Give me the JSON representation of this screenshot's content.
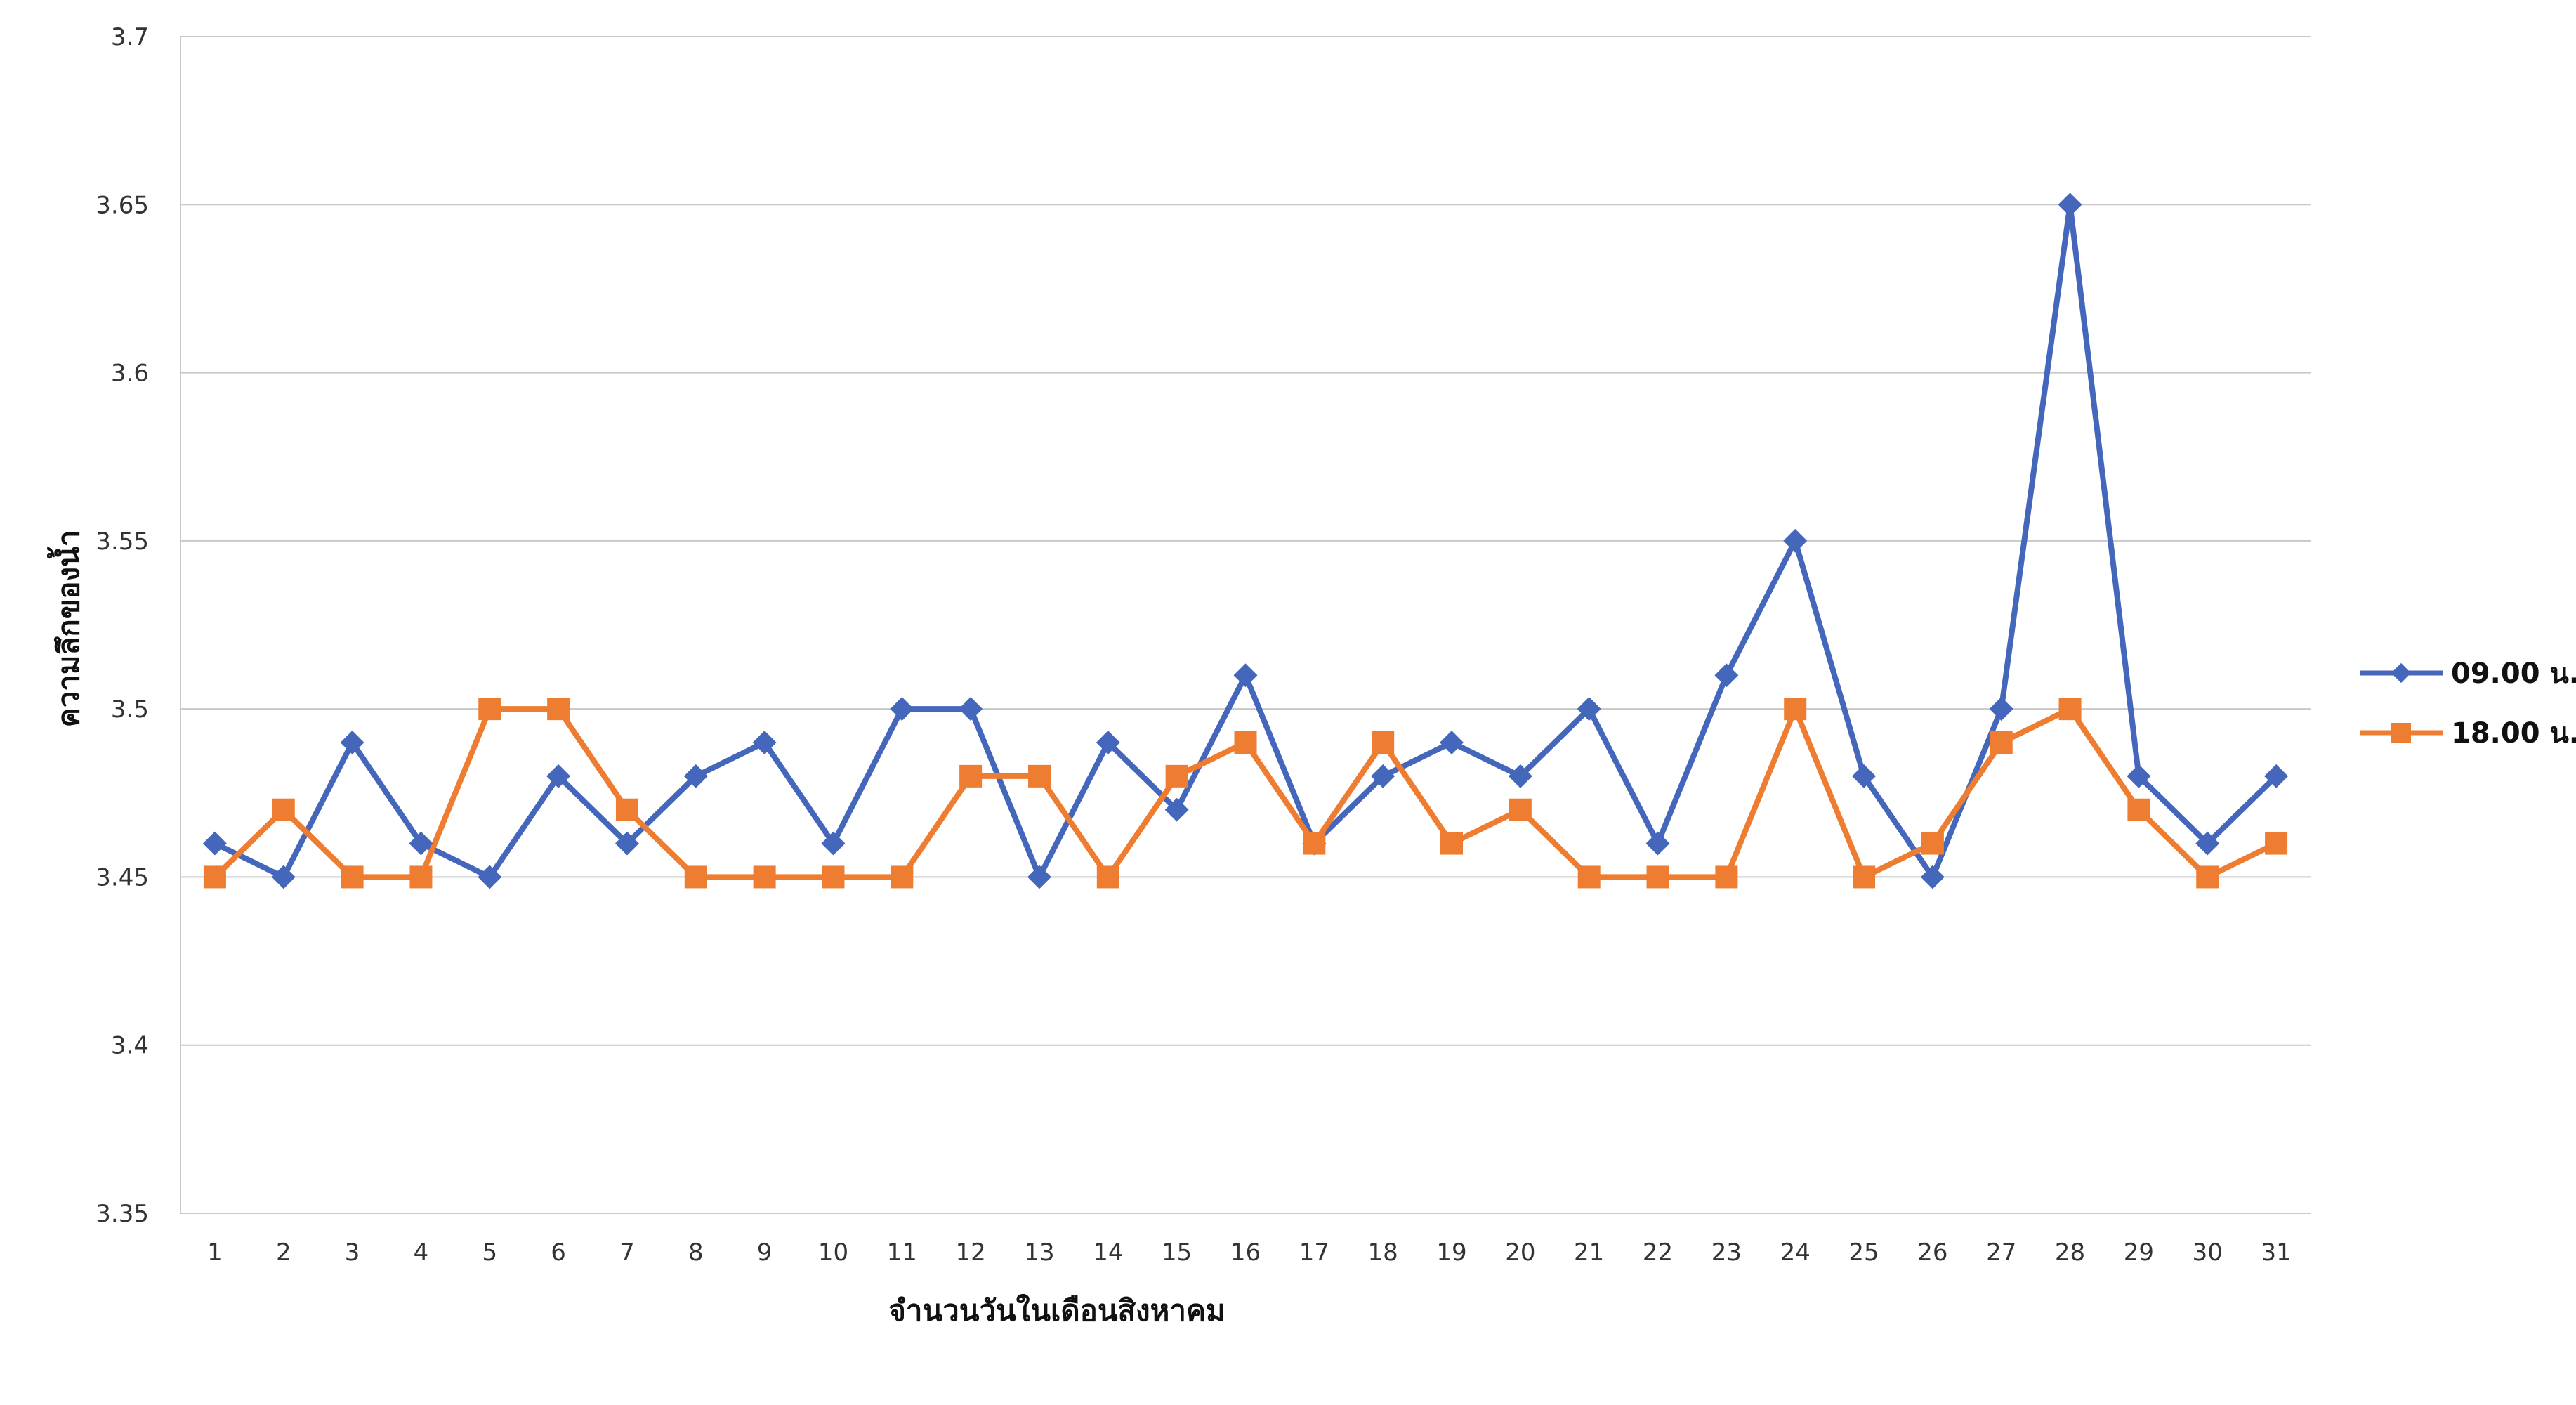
{
  "chart_data": {
    "type": "line",
    "title": "",
    "xlabel": "จำนวนวันในเดือนสิงหาคม",
    "ylabel": "ความลึกของน้ำ",
    "ylim": [
      3.35,
      3.7
    ],
    "yticks": [
      "3.7",
      "3.65",
      "3.6",
      "3.55",
      "3.5",
      "3.45",
      "3.4",
      "3.35"
    ],
    "grid": true,
    "legend_position": "right",
    "x": [
      1,
      2,
      3,
      4,
      5,
      6,
      7,
      8,
      9,
      10,
      11,
      12,
      13,
      14,
      15,
      16,
      17,
      18,
      19,
      20,
      21,
      22,
      23,
      24,
      25,
      26,
      27,
      28,
      29,
      30,
      31
    ],
    "series": [
      {
        "name": "09.00 น.",
        "color": "#4466bb",
        "marker": "diamond",
        "values": [
          3.46,
          3.45,
          3.49,
          3.46,
          3.45,
          3.48,
          3.46,
          3.48,
          3.49,
          3.46,
          3.5,
          3.5,
          3.45,
          3.49,
          3.47,
          3.51,
          3.46,
          3.48,
          3.49,
          3.48,
          3.5,
          3.46,
          3.51,
          3.55,
          3.48,
          3.45,
          3.5,
          3.65,
          3.48,
          3.46,
          3.48
        ]
      },
      {
        "name": "18.00 น.",
        "color": "#ee7d31",
        "marker": "square",
        "values": [
          3.45,
          3.47,
          3.45,
          3.45,
          3.5,
          3.5,
          3.47,
          3.45,
          3.45,
          3.45,
          3.45,
          3.48,
          3.48,
          3.45,
          3.48,
          3.49,
          3.46,
          3.49,
          3.46,
          3.47,
          3.45,
          3.45,
          3.45,
          3.5,
          3.45,
          3.46,
          3.49,
          3.5,
          3.47,
          3.45,
          3.46
        ]
      }
    ]
  }
}
